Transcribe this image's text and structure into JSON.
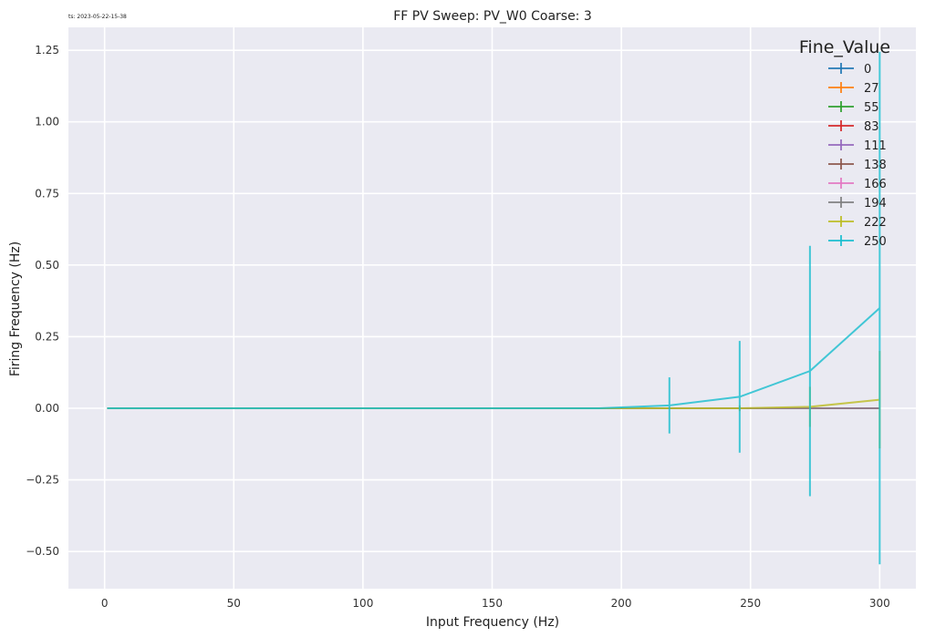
{
  "timestamp": "ts: 2023-05-22-15-38",
  "chart_data": {
    "type": "line",
    "title": "FF PV Sweep: PV_W0 Coarse: 3",
    "xlabel": "Input Frequency (Hz)",
    "ylabel": "Firing Frequency (Hz)",
    "xlim": [
      -14,
      314
    ],
    "ylim": [
      -0.63,
      1.33
    ],
    "xticks": [
      0,
      50,
      100,
      150,
      200,
      250,
      300
    ],
    "xtick_labels": [
      "0",
      "50",
      "100",
      "150",
      "200",
      "250",
      "300"
    ],
    "yticks": [
      -0.5,
      -0.25,
      0.0,
      0.25,
      0.5,
      0.75,
      1.0,
      1.25
    ],
    "ytick_labels": [
      "−0.50",
      "−0.25",
      "0.00",
      "0.25",
      "0.50",
      "0.75",
      "1.00",
      "1.25"
    ],
    "grid": true,
    "legend": {
      "title": "Fine_Value",
      "placement": "top-right"
    },
    "x": [
      1,
      28.2,
      55.4,
      82.6,
      109.8,
      137,
      164.2,
      191.4,
      218.6,
      245.8,
      273,
      300
    ],
    "series": [
      {
        "name": "0",
        "color": "#1f77b4",
        "y": [
          0,
          0,
          0,
          0,
          0,
          0,
          0,
          0,
          0,
          0,
          0,
          0
        ],
        "err": [
          0,
          0,
          0,
          0,
          0,
          0,
          0,
          0,
          0,
          0,
          0,
          0
        ]
      },
      {
        "name": "27",
        "color": "#ff7f0e",
        "y": [
          0,
          0,
          0,
          0,
          0,
          0,
          0,
          0,
          0,
          0,
          0,
          0
        ],
        "err": [
          0,
          0,
          0,
          0,
          0,
          0,
          0,
          0,
          0,
          0,
          0,
          0
        ]
      },
      {
        "name": "55",
        "color": "#2ca02c",
        "y": [
          0,
          0,
          0,
          0,
          0,
          0,
          0,
          0,
          0,
          0,
          0,
          0
        ],
        "err": [
          0,
          0,
          0,
          0,
          0,
          0,
          0,
          0,
          0,
          0,
          0,
          0
        ]
      },
      {
        "name": "83",
        "color": "#d62728",
        "y": [
          0,
          0,
          0,
          0,
          0,
          0,
          0,
          0,
          0,
          0,
          0,
          0
        ],
        "err": [
          0,
          0,
          0,
          0,
          0,
          0,
          0,
          0,
          0,
          0,
          0,
          0
        ]
      },
      {
        "name": "111",
        "color": "#9467bd",
        "y": [
          0,
          0,
          0,
          0,
          0,
          0,
          0,
          0,
          0,
          0,
          0,
          0
        ],
        "err": [
          0,
          0,
          0,
          0,
          0,
          0,
          0,
          0,
          0,
          0,
          0,
          0
        ]
      },
      {
        "name": "138",
        "color": "#8c564b",
        "y": [
          0,
          0,
          0,
          0,
          0,
          0,
          0,
          0,
          0,
          0,
          0,
          0
        ],
        "err": [
          0,
          0,
          0,
          0,
          0,
          0,
          0,
          0,
          0,
          0,
          0,
          0
        ]
      },
      {
        "name": "166",
        "color": "#e377c2",
        "y": [
          0,
          0,
          0,
          0,
          0,
          0,
          0,
          0,
          0,
          0,
          0,
          0
        ],
        "err": [
          0,
          0,
          0,
          0,
          0,
          0,
          0,
          0,
          0,
          0,
          0,
          0
        ]
      },
      {
        "name": "194",
        "color": "#7f7f7f",
        "y": [
          0,
          0,
          0,
          0,
          0,
          0,
          0,
          0,
          0,
          0,
          0,
          0
        ],
        "err": [
          0,
          0,
          0,
          0,
          0,
          0,
          0,
          0,
          0,
          0,
          0,
          0
        ]
      },
      {
        "name": "222",
        "color": "#bcbd22",
        "y": [
          0,
          0,
          0,
          0,
          0,
          0,
          0,
          0,
          0,
          0,
          0.005,
          0.03
        ],
        "err": [
          0,
          0,
          0,
          0,
          0,
          0,
          0,
          0,
          0,
          0.01,
          0.07,
          0.17
        ]
      },
      {
        "name": "250",
        "color": "#17becf",
        "y": [
          0,
          0,
          0,
          0,
          0,
          0,
          0,
          0,
          0.01,
          0.04,
          0.13,
          0.35
        ],
        "err": [
          0,
          0,
          0,
          0,
          0,
          0,
          0,
          0,
          0.098,
          0.195,
          0.437,
          0.895
        ]
      }
    ]
  }
}
